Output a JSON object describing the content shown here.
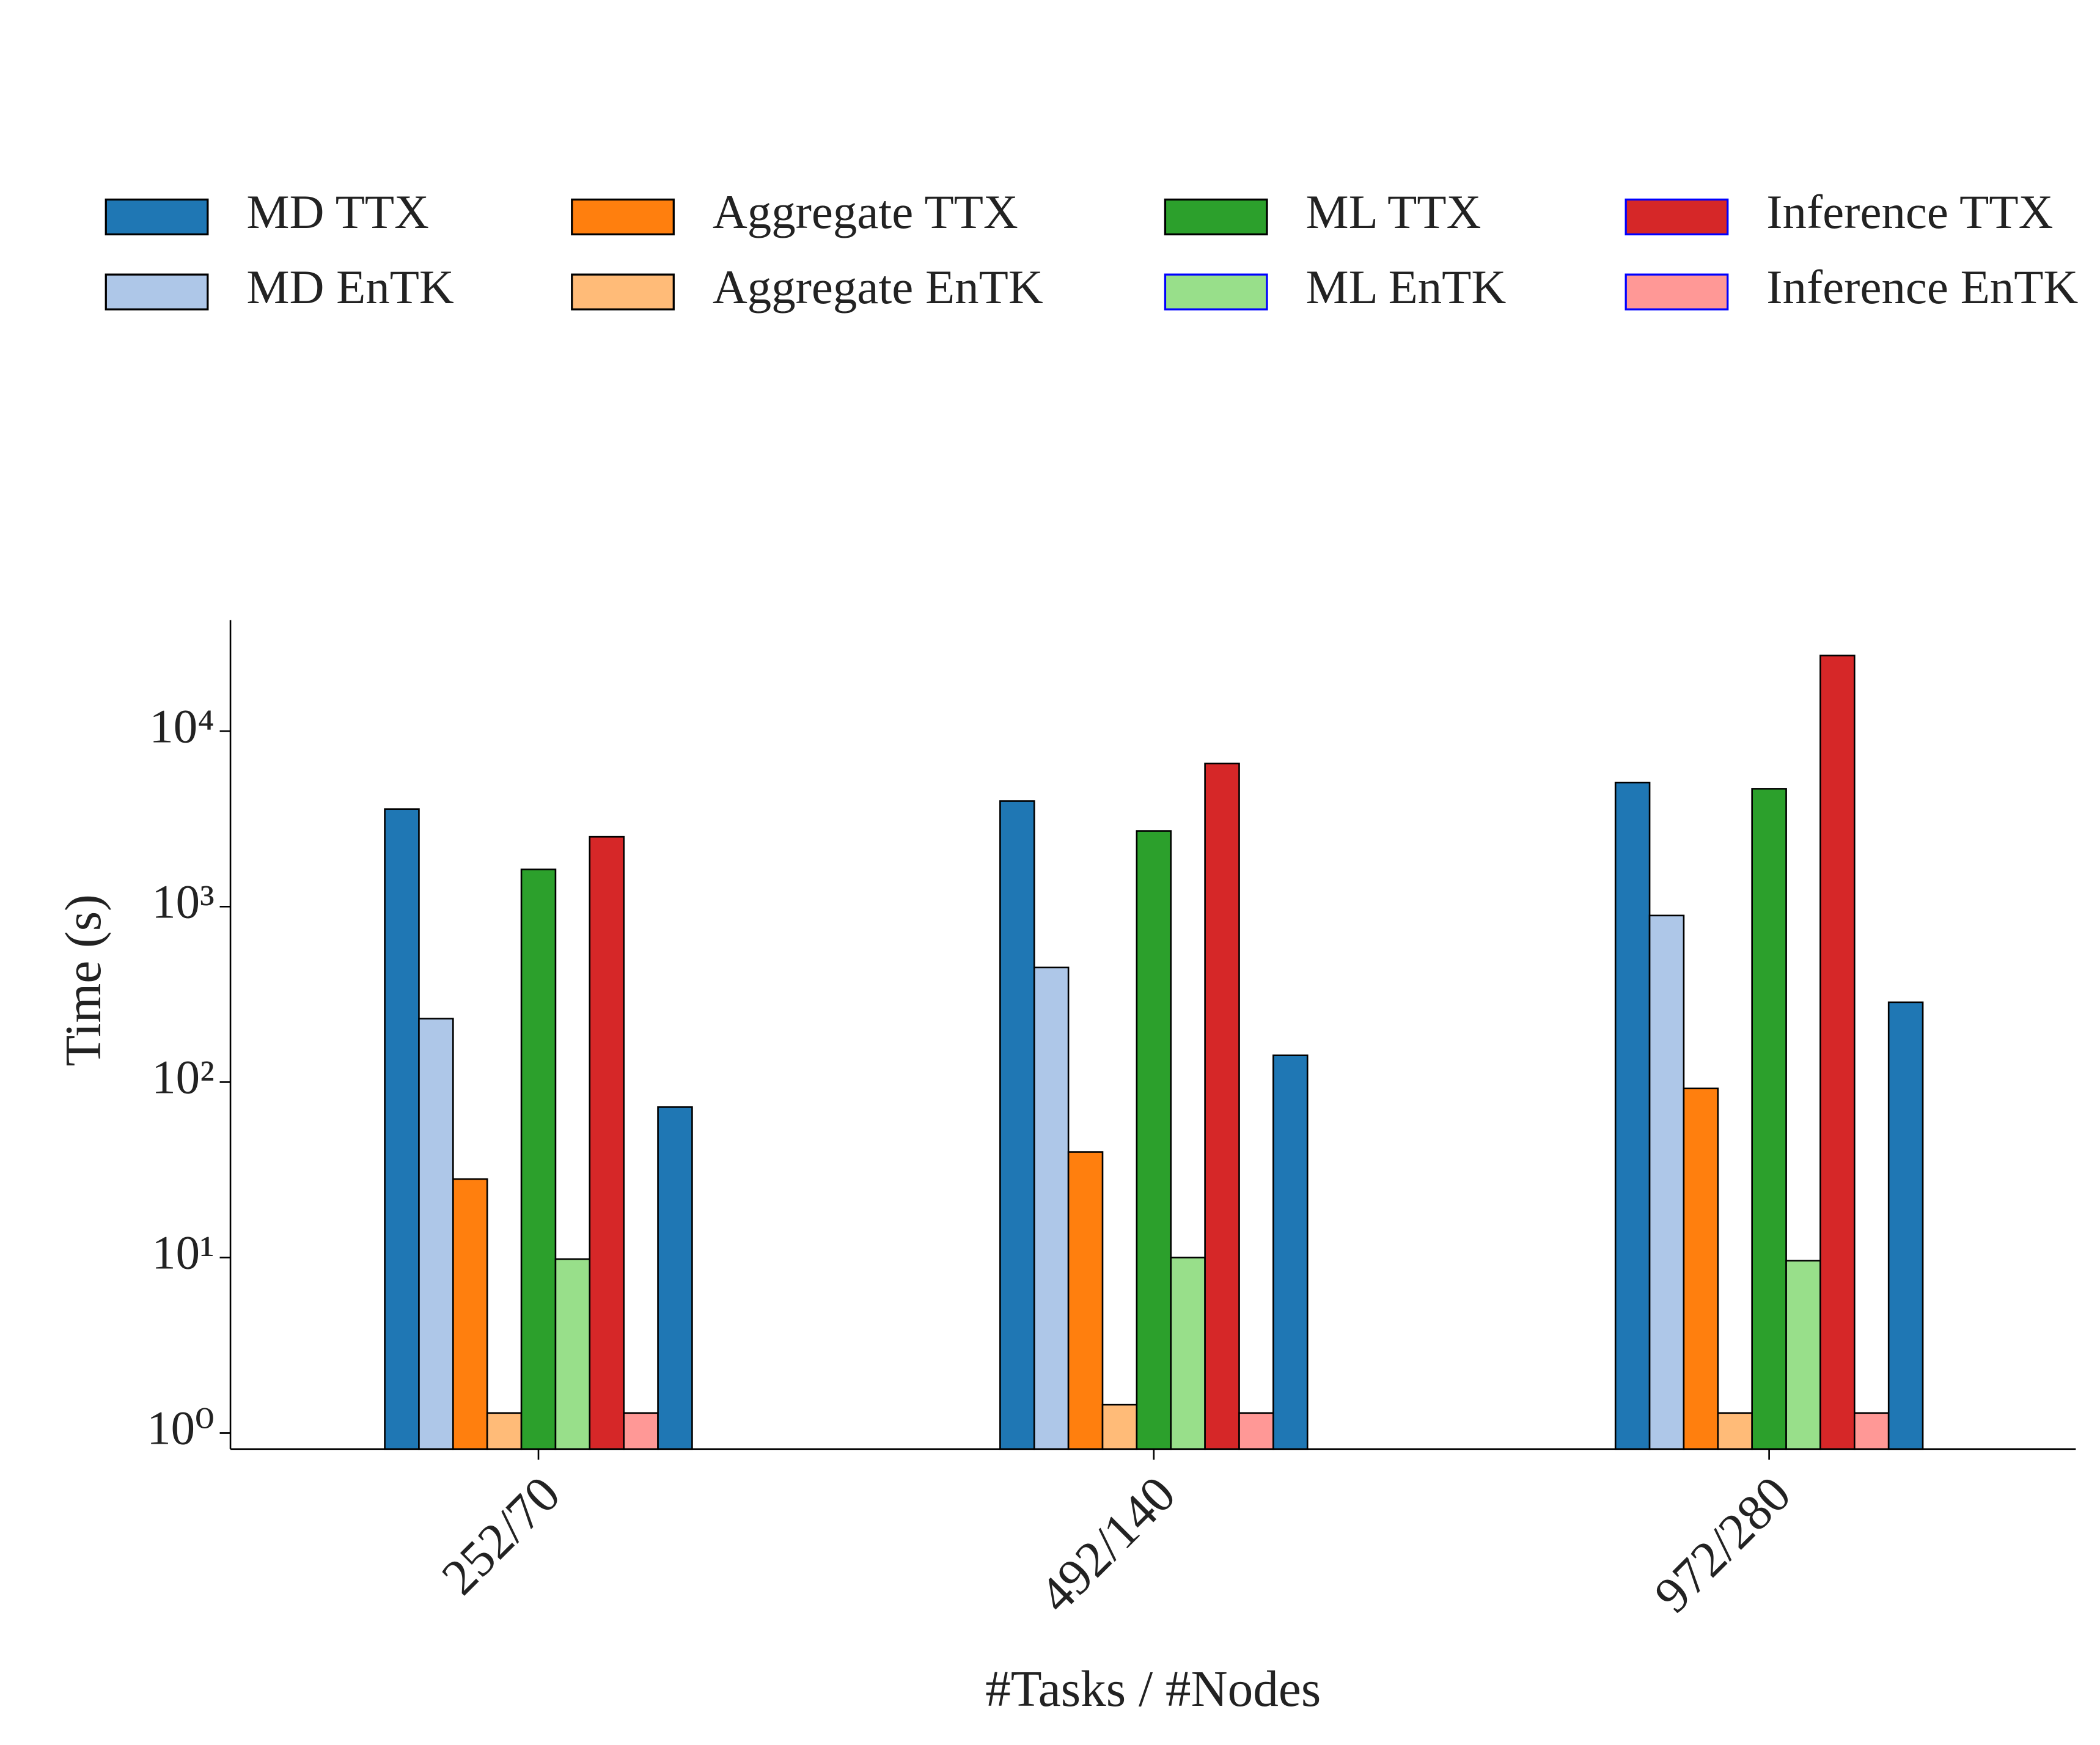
{
  "chart_data": {
    "type": "bar",
    "xlabel": "#Tasks / #Nodes",
    "ylabel": "Time (s)",
    "categories": [
      "252/70",
      "492/140",
      "972/280"
    ],
    "log_y": true,
    "ylim": [
      0.81,
      43000
    ],
    "yticks": [
      {
        "value": 1,
        "label": "10⁰"
      },
      {
        "value": 10,
        "label": "10¹"
      },
      {
        "value": 100,
        "label": "10²"
      },
      {
        "value": 1000,
        "label": "10³"
      },
      {
        "value": 10000,
        "label": "10⁴"
      }
    ],
    "legend": "top",
    "series": [
      {
        "name": "MD TTX",
        "color": "#1f77b4",
        "edgecolor": "#000000",
        "values": [
          3600,
          4000,
          5100
        ]
      },
      {
        "name": "MD EnTK",
        "color": "#aec7e8",
        "edgecolor": "#000000",
        "values": [
          230,
          450,
          890
        ]
      },
      {
        "name": "Aggregate TTX",
        "color": "#ff7f0e",
        "edgecolor": "#000000",
        "values": [
          28,
          40,
          92
        ]
      },
      {
        "name": "Aggregate EnTK",
        "color": "#ffbb78",
        "edgecolor": "#000000",
        "values": [
          1.3,
          1.45,
          1.3
        ]
      },
      {
        "name": "ML TTX",
        "color": "#2ca02c",
        "edgecolor": "#000000",
        "values": [
          1630,
          2700,
          4700
        ]
      },
      {
        "name": "ML EnTK",
        "color": "#98df8a",
        "edgecolor": "#0000ff",
        "values": [
          9.8,
          10,
          9.6
        ]
      },
      {
        "name": "Inference TTX",
        "color": "#d62728",
        "edgecolor": "#0000ff",
        "values": [
          2500,
          6550,
          27000
        ]
      },
      {
        "name": "Inference EnTK",
        "color": "#ff9896",
        "edgecolor": "#0000ff",
        "values": [
          1.3,
          1.3,
          1.3
        ]
      },
      {
        "color": "#1f77b4",
        "edgecolor": "#000000",
        "values": [
          72,
          142,
          285
        ]
      }
    ]
  }
}
